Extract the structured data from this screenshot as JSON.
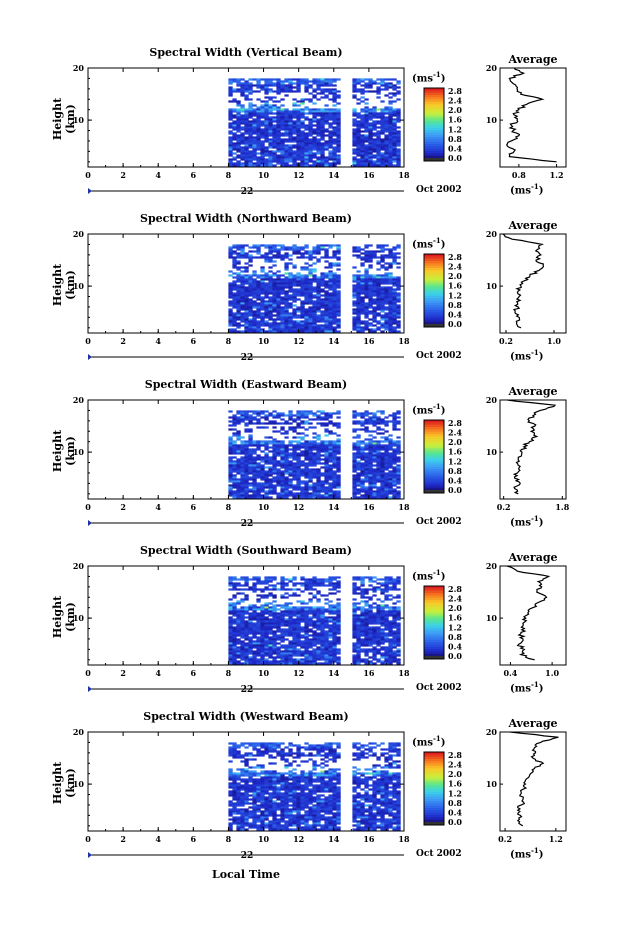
{
  "figure": {
    "xlabel": "Local Time",
    "date_label": "Oct 2002",
    "day_label": "22",
    "colorbar_unit_base": "(ms",
    "colorbar_unit_exp": "-1",
    "colorbar_ticks": [
      "2.8",
      "2.4",
      "2.0",
      "1.6",
      "1.2",
      "0.8",
      "0.4",
      "0.0"
    ],
    "avg_title": "Average",
    "ylabel": "Height (km)"
  },
  "chart_data": [
    {
      "type": "heatmap",
      "title": "Spectral Width (Vertical Beam)",
      "ylabel": "Height (km)",
      "xlabel": "Local Time",
      "x_ticks": [
        0,
        2,
        4,
        6,
        8,
        10,
        12,
        14,
        16,
        18
      ],
      "y_ticks": [
        10,
        20
      ],
      "xlim": [
        0,
        18
      ],
      "ylim": [
        1,
        20
      ],
      "data_start_hour": 8,
      "gap_hours": [
        14.6,
        15.0
      ],
      "colorbar": {
        "min": 0.0,
        "max": 3.0,
        "label": "ms-1"
      },
      "average_profile": {
        "title": "Average",
        "x_ticks": [
          "0.8",
          "1.2"
        ],
        "xlim": [
          0.6,
          1.3
        ],
        "xunit": "ms-1",
        "heights": [
          2,
          3,
          4,
          5,
          6,
          7,
          8,
          9,
          10,
          11,
          12,
          13,
          14,
          15,
          16,
          17,
          18,
          19,
          20
        ],
        "values": [
          1.2,
          0.7,
          0.75,
          0.68,
          0.72,
          0.8,
          0.74,
          0.72,
          0.78,
          0.75,
          0.8,
          0.88,
          1.05,
          0.82,
          0.78,
          0.74,
          0.7,
          0.85,
          0.75
        ]
      }
    },
    {
      "type": "heatmap",
      "title": "Spectral Width (Northward Beam)",
      "ylabel": "Height (km)",
      "xlabel": "Local Time",
      "x_ticks": [
        0,
        2,
        4,
        6,
        8,
        10,
        12,
        14,
        16,
        18
      ],
      "y_ticks": [
        10,
        20
      ],
      "xlim": [
        0,
        18
      ],
      "ylim": [
        1,
        20
      ],
      "data_start_hour": 8,
      "gap_hours": [
        14.6,
        15.0
      ],
      "colorbar": {
        "min": 0.0,
        "max": 3.0,
        "label": "ms-1"
      },
      "average_profile": {
        "title": "Average",
        "x_ticks": [
          "0.2",
          "1.0"
        ],
        "xlim": [
          0.1,
          1.2
        ],
        "xunit": "ms-1",
        "heights": [
          2,
          3,
          4,
          5,
          6,
          7,
          8,
          9,
          10,
          11,
          12,
          13,
          14,
          15,
          16,
          17,
          18,
          19,
          20
        ],
        "values": [
          0.45,
          0.38,
          0.42,
          0.35,
          0.4,
          0.38,
          0.42,
          0.4,
          0.45,
          0.5,
          0.6,
          0.75,
          0.82,
          0.7,
          0.78,
          0.72,
          0.8,
          0.3,
          0.15
        ]
      }
    },
    {
      "type": "heatmap",
      "title": "Spectral Width (Eastward Beam)",
      "ylabel": "Height (km)",
      "xlabel": "Local Time",
      "x_ticks": [
        0,
        2,
        4,
        6,
        8,
        10,
        12,
        14,
        16,
        18
      ],
      "y_ticks": [
        10,
        20
      ],
      "xlim": [
        0,
        18
      ],
      "ylim": [
        1,
        20
      ],
      "data_start_hour": 8,
      "gap_hours": [
        14.6,
        15.0
      ],
      "colorbar": {
        "min": 0.0,
        "max": 3.0,
        "label": "ms-1"
      },
      "average_profile": {
        "title": "Average",
        "x_ticks": [
          "0.2",
          "1.8"
        ],
        "xlim": [
          0.1,
          1.9
        ],
        "xunit": "ms-1",
        "heights": [
          2,
          3,
          4,
          5,
          6,
          7,
          8,
          9,
          10,
          11,
          12,
          13,
          14,
          15,
          16,
          17,
          18,
          19,
          20
        ],
        "values": [
          0.6,
          0.5,
          0.65,
          0.5,
          0.58,
          0.62,
          0.55,
          0.6,
          0.7,
          0.75,
          0.9,
          1.1,
          0.95,
          1.05,
          0.9,
          1.0,
          1.2,
          1.6,
          0.3
        ]
      }
    },
    {
      "type": "heatmap",
      "title": "Spectral Width (Southward Beam)",
      "ylabel": "Height (km)",
      "xlabel": "Local Time",
      "x_ticks": [
        0,
        2,
        4,
        6,
        8,
        10,
        12,
        14,
        16,
        18
      ],
      "y_ticks": [
        10,
        20
      ],
      "xlim": [
        0,
        18
      ],
      "ylim": [
        1,
        20
      ],
      "data_start_hour": 8,
      "gap_hours": [
        14.6,
        15.0
      ],
      "colorbar": {
        "min": 0.0,
        "max": 3.0,
        "label": "ms-1"
      },
      "average_profile": {
        "title": "Average",
        "x_ticks": [
          "0.4",
          "1.0"
        ],
        "xlim": [
          0.25,
          1.2
        ],
        "xunit": "ms-1",
        "heights": [
          2,
          3,
          4,
          5,
          6,
          7,
          8,
          9,
          10,
          11,
          12,
          13,
          14,
          15,
          16,
          17,
          18,
          19,
          20
        ],
        "values": [
          0.75,
          0.55,
          0.6,
          0.52,
          0.58,
          0.55,
          0.6,
          0.58,
          0.62,
          0.65,
          0.72,
          0.8,
          0.92,
          0.78,
          0.85,
          0.8,
          0.95,
          0.5,
          0.35
        ]
      }
    },
    {
      "type": "heatmap",
      "title": "Spectral Width (Westward Beam)",
      "ylabel": "Height (km)",
      "xlabel": "Local Time",
      "x_ticks": [
        0,
        2,
        4,
        6,
        8,
        10,
        12,
        14,
        16,
        18
      ],
      "y_ticks": [
        10,
        20
      ],
      "xlim": [
        0,
        18
      ],
      "ylim": [
        1,
        20
      ],
      "data_start_hour": 8,
      "gap_hours": [
        14.6,
        15.0
      ],
      "colorbar": {
        "min": 0.0,
        "max": 3.0,
        "label": "ms-1"
      },
      "average_profile": {
        "title": "Average",
        "x_ticks": [
          "0.2",
          "1.2"
        ],
        "xlim": [
          0.1,
          1.4
        ],
        "xunit": "ms-1",
        "heights": [
          2,
          3,
          4,
          5,
          6,
          7,
          8,
          9,
          10,
          11,
          12,
          13,
          14,
          15,
          16,
          17,
          18,
          19,
          20
        ],
        "values": [
          0.55,
          0.45,
          0.5,
          0.45,
          0.52,
          0.55,
          0.5,
          0.55,
          0.6,
          0.62,
          0.7,
          0.78,
          0.95,
          0.75,
          0.8,
          0.78,
          0.9,
          1.25,
          0.3
        ]
      }
    }
  ]
}
